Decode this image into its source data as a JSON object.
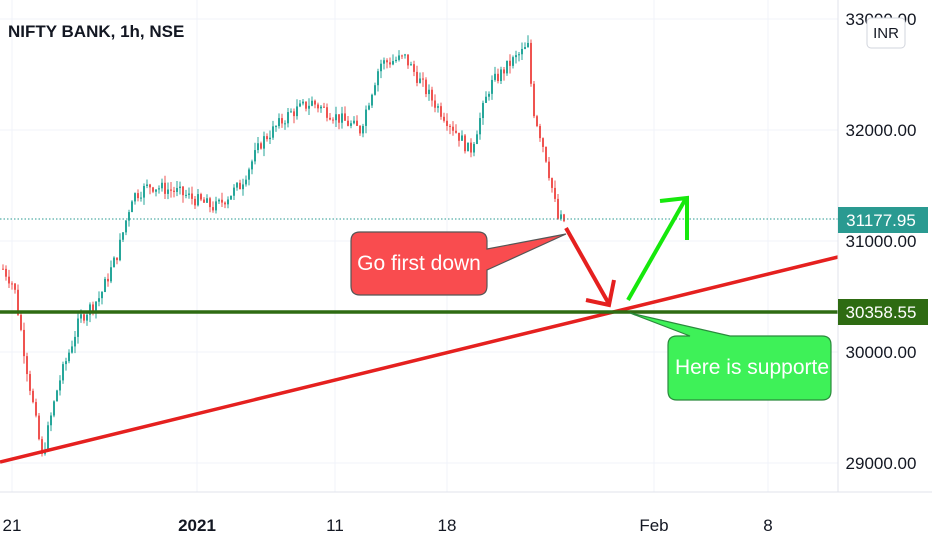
{
  "header": {
    "title": "NIFTY BANK, 1h, NSE",
    "currency_label": "INR"
  },
  "chart_data": {
    "type": "candlestick",
    "title": "NIFTY BANK, 1h, NSE",
    "y_ticks": [
      "29000.00",
      "30000.00",
      "31000.00",
      "32000.00",
      "33000.00"
    ],
    "y_tick_values": [
      29000,
      30000,
      31000,
      32000,
      33000
    ],
    "ylim": [
      28700,
      33200
    ],
    "x_ticks": [
      "21",
      "2021",
      "11",
      "18",
      "Feb",
      "8"
    ],
    "grid": true,
    "colors": {
      "up": "#26a69a",
      "down": "#ef5350",
      "support": "#2e6b12",
      "trend": "#e5201f",
      "up_arrow": "#16e80c",
      "down_arrow": "#e5201f"
    },
    "last_price": {
      "label": "31177.95",
      "value": 31177.95,
      "color": "#2a9a91"
    },
    "support_level": {
      "label": "30358.55",
      "value": 30358.55
    },
    "path": [
      32400,
      32350,
      32200,
      32450,
      32600,
      32550,
      32750,
      32700,
      32500,
      31800,
      31200,
      31000
    ],
    "annotations": [
      {
        "text": "Go first down",
        "color": "#f94c4f"
      },
      {
        "text": "Here is supporte",
        "color": "#3ef158"
      }
    ]
  }
}
